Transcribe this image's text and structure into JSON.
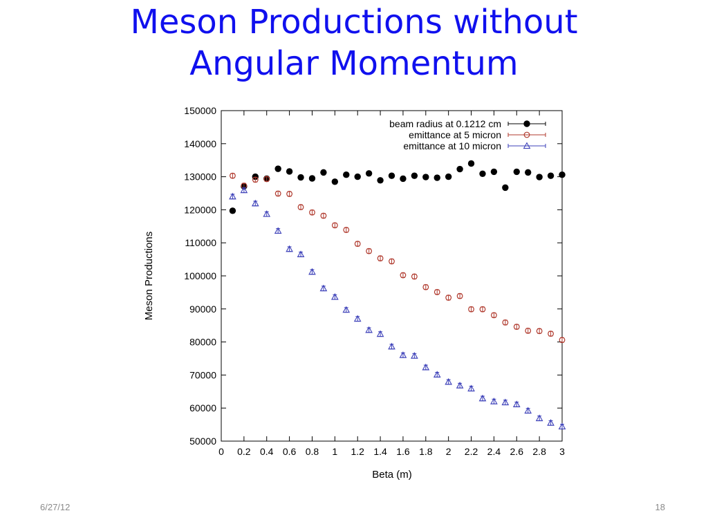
{
  "slide": {
    "title_line1": "Meson Productions without",
    "title_line2": "Angular Momentum",
    "date": "6/27/12",
    "page_number": "18"
  },
  "chart_data": {
    "type": "scatter",
    "xlabel": "Beta (m)",
    "ylabel": "Meson Productions",
    "xlim": [
      0,
      3
    ],
    "ylim": [
      50000,
      150000
    ],
    "xticks": [
      0,
      0.2,
      0.4,
      0.6,
      0.8,
      1,
      1.2,
      1.4,
      1.6,
      1.8,
      2,
      2.2,
      2.4,
      2.6,
      2.8,
      3
    ],
    "xtick_labels": [
      "0",
      "0.2",
      "0.4",
      "0.6",
      "0.8",
      "1",
      "1.2",
      "1.4",
      "1.6",
      "1.8",
      "2",
      "2.2",
      "2.4",
      "2.6",
      "2.8",
      "3"
    ],
    "yticks": [
      50000,
      60000,
      70000,
      80000,
      90000,
      100000,
      110000,
      120000,
      130000,
      140000,
      150000
    ],
    "ytick_labels": [
      "50000",
      "60000",
      "70000",
      "80000",
      "90000",
      "100000",
      "110000",
      "120000",
      "130000",
      "140000",
      "150000"
    ],
    "grid": false,
    "legend_position": "top-right",
    "x": [
      0.1,
      0.2,
      0.3,
      0.4,
      0.5,
      0.6,
      0.7,
      0.8,
      0.9,
      1.0,
      1.1,
      1.2,
      1.3,
      1.4,
      1.5,
      1.6,
      1.7,
      1.8,
      1.9,
      2.0,
      2.1,
      2.2,
      2.3,
      2.4,
      2.5,
      2.6,
      2.7,
      2.8,
      2.9,
      3.0
    ],
    "series": [
      {
        "name": "beam radius at 0.1212 cm",
        "marker": "filled-circle",
        "color": "#000000",
        "values": [
          119700,
          127100,
          130000,
          129400,
          132400,
          131600,
          129800,
          129500,
          131300,
          128500,
          130600,
          130000,
          131000,
          128900,
          130300,
          129400,
          130300,
          129900,
          129700,
          130000,
          132300,
          134000,
          130900,
          131500,
          126700,
          131500,
          131300,
          129900,
          130300,
          130600
        ],
        "error": [
          700,
          700,
          700,
          700,
          700,
          700,
          700,
          700,
          700,
          700,
          700,
          700,
          700,
          700,
          700,
          700,
          700,
          700,
          700,
          700,
          700,
          700,
          700,
          700,
          700,
          700,
          700,
          700,
          700,
          700
        ]
      },
      {
        "name": "emittance at 5 micron",
        "marker": "open-circle",
        "color": "#b03a2e",
        "values": [
          130300,
          127300,
          129100,
          129300,
          124900,
          124800,
          120800,
          119200,
          118200,
          115300,
          113900,
          109700,
          107500,
          105300,
          104400,
          100200,
          99800,
          96600,
          95100,
          93400,
          93900,
          89900,
          89900,
          88100,
          85900,
          84600,
          83400,
          83300,
          82500,
          80600
        ],
        "error": [
          700,
          700,
          700,
          700,
          700,
          700,
          700,
          700,
          700,
          700,
          700,
          700,
          700,
          700,
          700,
          700,
          700,
          700,
          700,
          700,
          700,
          700,
          700,
          700,
          700,
          700,
          700,
          700,
          700,
          700
        ]
      },
      {
        "name": "emittance at 10 micron",
        "marker": "open-triangle",
        "color": "#3b3fb8",
        "values": [
          124000,
          125900,
          121900,
          118700,
          113600,
          108100,
          106500,
          101200,
          96200,
          93600,
          89700,
          87000,
          83600,
          82400,
          78600,
          76000,
          75800,
          72300,
          70100,
          67900,
          66800,
          65900,
          62900,
          62000,
          61700,
          61100,
          59200,
          56900,
          55500,
          54400
        ],
        "error": [
          700,
          700,
          700,
          700,
          700,
          700,
          700,
          700,
          700,
          700,
          700,
          700,
          700,
          700,
          700,
          700,
          700,
          700,
          700,
          700,
          700,
          700,
          700,
          700,
          700,
          700,
          700,
          700,
          700,
          700
        ]
      }
    ]
  }
}
